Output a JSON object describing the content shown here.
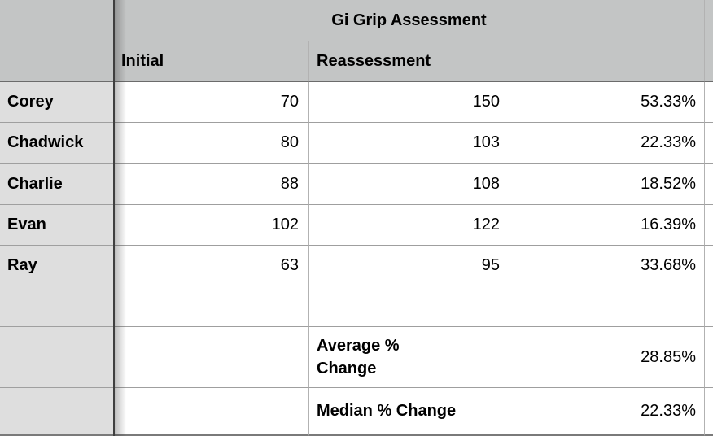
{
  "table": {
    "title": "Gi Grip Assessment",
    "headers": {
      "initial": "Initial",
      "reassessment": "Reassessment",
      "change": ""
    },
    "rows": [
      {
        "name": "Corey",
        "initial": "70",
        "reassessment": "150",
        "change": "53.33%"
      },
      {
        "name": "Chadwick",
        "initial": "80",
        "reassessment": "103",
        "change": "22.33%"
      },
      {
        "name": "Charlie",
        "initial": "88",
        "reassessment": "108",
        "change": "18.52%"
      },
      {
        "name": "Evan",
        "initial": "102",
        "reassessment": "122",
        "change": "16.39%"
      },
      {
        "name": "Ray",
        "initial": "63",
        "reassessment": "95",
        "change": "33.68%"
      }
    ],
    "summary": [
      {
        "label": "Average %\nChange",
        "value": "28.85%"
      },
      {
        "label": "Median % Change",
        "value": "22.33%"
      }
    ]
  },
  "colors": {
    "header_bg": "#c3c5c5",
    "name_column_bg": "#dedede",
    "body_bg": "#ffffff",
    "grid_line_vertical": "#b2b2b2",
    "grid_line_horizontal": "#9f9f9f",
    "header_bottom_border": "#6b6b6b",
    "freeze_divider": "#3f3f3f",
    "text": "#000000"
  },
  "chart_data": {
    "type": "table",
    "title": "Gi Grip Assessment",
    "column_headers": [
      "Initial",
      "Reassessment",
      ""
    ],
    "rows": [
      [
        "Corey",
        70,
        150,
        "53.33%"
      ],
      [
        "Chadwick",
        80,
        103,
        "22.33%"
      ],
      [
        "Charlie",
        88,
        108,
        "18.52%"
      ],
      [
        "Evan",
        102,
        122,
        "16.39%"
      ],
      [
        "Ray",
        63,
        95,
        "33.68%"
      ]
    ],
    "summary_rows": [
      [
        "Average % Change",
        "28.85%"
      ],
      [
        "Median % Change",
        "22.33%"
      ]
    ]
  }
}
